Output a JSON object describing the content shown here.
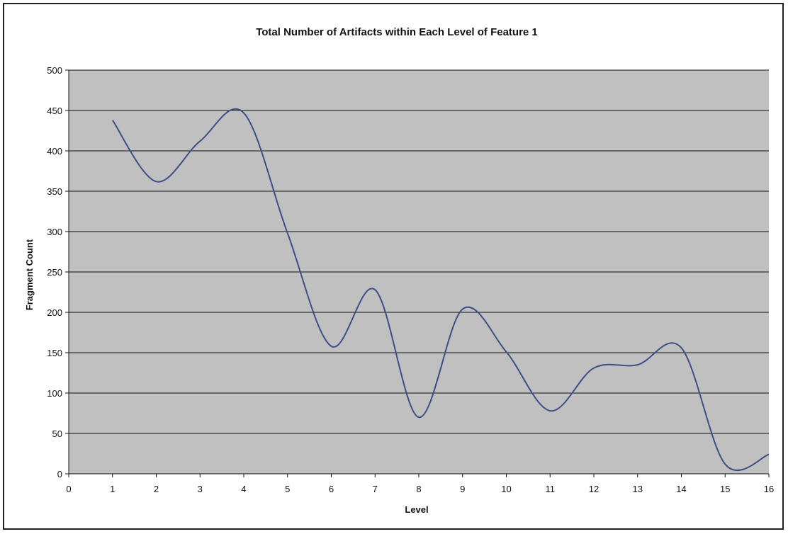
{
  "chart_data": {
    "type": "line",
    "title": "Total Number of Artifacts within Each Level of Feature 1",
    "xlabel": "Level",
    "ylabel": "Fragment Count",
    "xlim": [
      0,
      16
    ],
    "ylim": [
      0,
      500
    ],
    "x_ticks": [
      "0",
      "1",
      "2",
      "3",
      "4",
      "5",
      "6",
      "7",
      "8",
      "9",
      "10",
      "11",
      "12",
      "13",
      "14",
      "15",
      "16"
    ],
    "y_ticks": [
      "0",
      "50",
      "100",
      "150",
      "200",
      "250",
      "300",
      "350",
      "400",
      "450",
      "500"
    ],
    "grid": true,
    "smoothed": true,
    "series": [
      {
        "x": [
          1,
          2,
          3,
          4,
          5,
          6,
          7,
          8,
          9,
          10,
          11,
          12,
          13,
          14,
          15,
          16
        ],
        "values": [
          438,
          362,
          412,
          447,
          298,
          158,
          228,
          70,
          204,
          151,
          78,
          131,
          135,
          156,
          12,
          24
        ]
      }
    ],
    "colors": {
      "plot_bg": "#c0c0c0",
      "line": "#3d4f86",
      "grid": "#111111"
    }
  }
}
